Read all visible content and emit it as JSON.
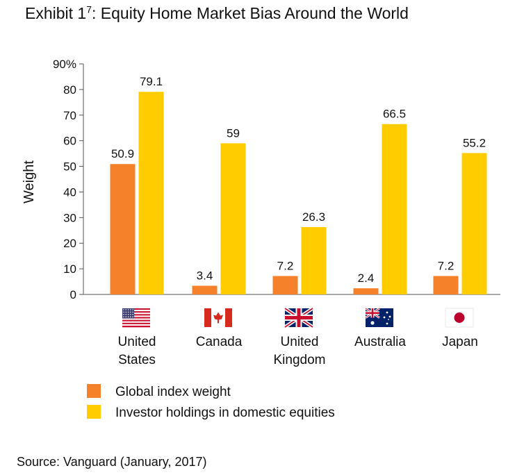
{
  "exhibit": {
    "title_prefix": "Exhibit 1",
    "title_sup": "7",
    "title_suffix": ": Equity Home Market Bias Around the World",
    "source": "Source: Vanguard (January, 2017)"
  },
  "colors": {
    "global_index_weight": "#f5822a",
    "investor_holdings": "#ffcc00",
    "axis": "#555555"
  },
  "chart_data": {
    "type": "bar",
    "title": "",
    "xlabel": "",
    "ylabel": "Weight",
    "ylim": [
      0,
      90
    ],
    "yticks": [
      {
        "value": 0,
        "label": "0"
      },
      {
        "value": 10,
        "label": "10"
      },
      {
        "value": 20,
        "label": "20"
      },
      {
        "value": 30,
        "label": "30"
      },
      {
        "value": 40,
        "label": "40"
      },
      {
        "value": 50,
        "label": "50"
      },
      {
        "value": 60,
        "label": "60"
      },
      {
        "value": 70,
        "label": "70"
      },
      {
        "value": 80,
        "label": "80"
      },
      {
        "value": 90,
        "label": "90%"
      }
    ],
    "grid": false,
    "legend": "bottom-left",
    "categories": [
      {
        "lines": [
          "United",
          "States"
        ],
        "flag": "us-flag-icon"
      },
      {
        "lines": [
          "Canada"
        ],
        "flag": "canada-flag-icon"
      },
      {
        "lines": [
          "United",
          "Kingdom"
        ],
        "flag": "uk-flag-icon"
      },
      {
        "lines": [
          "Australia"
        ],
        "flag": "australia-flag-icon"
      },
      {
        "lines": [
          "Japan"
        ],
        "flag": "japan-flag-icon"
      }
    ],
    "series": [
      {
        "name": "Global index weight",
        "color": "#f5822a",
        "values": [
          50.9,
          3.4,
          7.2,
          2.4,
          7.2
        ],
        "labels": [
          "50.9",
          "3.4",
          "7.2",
          "2.4",
          "7.2"
        ]
      },
      {
        "name": "Investor holdings in domestic equities",
        "color": "#ffcc00",
        "values": [
          79.1,
          59,
          26.3,
          66.5,
          55.2
        ],
        "labels": [
          "79.1",
          "59",
          "26.3",
          "66.5",
          "55.2"
        ]
      }
    ]
  }
}
